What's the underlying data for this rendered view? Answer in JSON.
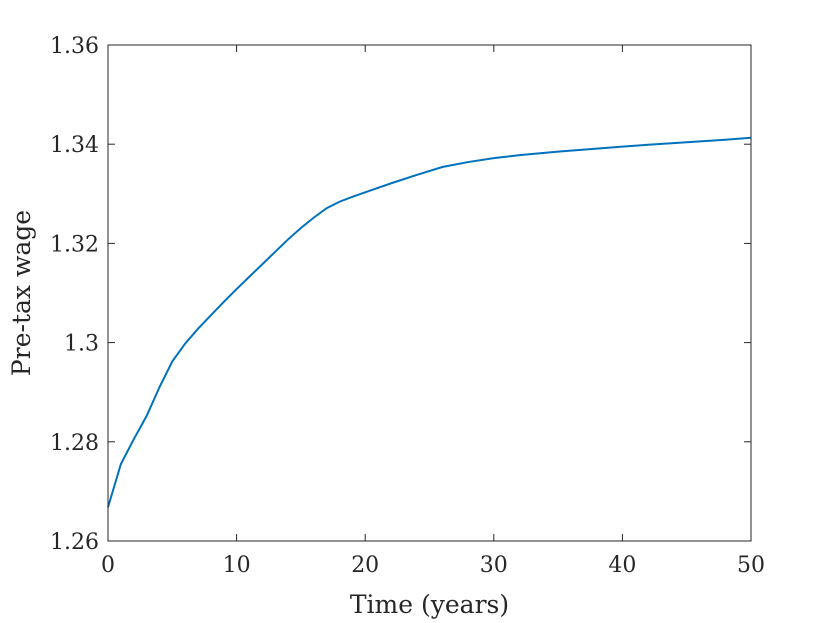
{
  "chart_data": {
    "type": "line",
    "title": "",
    "xlabel": "Time (years)",
    "ylabel": "Pre-tax wage",
    "xlim": [
      0,
      50
    ],
    "ylim": [
      1.26,
      1.36
    ],
    "xticks": [
      0,
      10,
      20,
      30,
      40,
      50
    ],
    "xtick_labels": [
      "0",
      "10",
      "20",
      "30",
      "40",
      "50"
    ],
    "yticks": [
      1.26,
      1.28,
      1.3,
      1.32,
      1.34,
      1.36
    ],
    "ytick_labels": [
      "1.26",
      "1.28",
      "1.3",
      "1.32",
      "1.34",
      "1.36"
    ],
    "grid": false,
    "series": [
      {
        "color": "#0072BD",
        "x": [
          0,
          1,
          2,
          3,
          4,
          5,
          6,
          7,
          8,
          9,
          10,
          11,
          12,
          13,
          14,
          15,
          16,
          17,
          18,
          19,
          20,
          22,
          24,
          26,
          28,
          30,
          32,
          35,
          38,
          40,
          42,
          45,
          48,
          50
        ],
        "y": [
          1.2668,
          1.2755,
          1.2805,
          1.2852,
          1.291,
          1.2962,
          1.2998,
          1.3028,
          1.3055,
          1.3082,
          1.3108,
          1.3133,
          1.3158,
          1.3183,
          1.3208,
          1.3231,
          1.3252,
          1.3271,
          1.3284,
          1.3294,
          1.3303,
          1.3321,
          1.3338,
          1.3354,
          1.3364,
          1.3372,
          1.3378,
          1.3385,
          1.3391,
          1.3395,
          1.3399,
          1.3404,
          1.3409,
          1.3413
        ]
      }
    ]
  }
}
